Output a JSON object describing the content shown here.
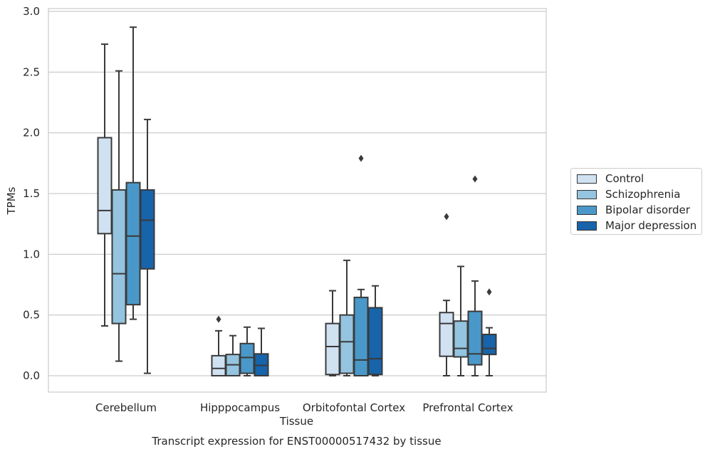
{
  "chart_data": {
    "type": "box",
    "title": "",
    "caption": "Transcript expression for ENST00000517432 by tissue",
    "xlabel": "Tissue",
    "ylabel": "TPMs",
    "ylim": [
      -0.13,
      3.02
    ],
    "yticks": [
      0.0,
      0.5,
      1.0,
      1.5,
      2.0,
      2.5,
      3.0
    ],
    "ytick_labels": [
      "0.0",
      "0.5",
      "1.0",
      "1.5",
      "2.0",
      "2.5",
      "3.0"
    ],
    "grid": "horizontal",
    "legend_position": "right",
    "categories": [
      "Cerebellum",
      "Hipppocampus",
      "Orbitofontal Cortex",
      "Prefrontal Cortex"
    ],
    "series": [
      {
        "name": "Control",
        "color": "#d0e1f2",
        "boxes": [
          {
            "min": 0.41,
            "q1": 1.17,
            "median": 1.36,
            "q3": 1.96,
            "max": 2.73,
            "outliers": []
          },
          {
            "min": 0.0,
            "q1": 0.0,
            "median": 0.06,
            "q3": 0.165,
            "max": 0.37,
            "outliers": [
              0.465
            ]
          },
          {
            "min": 0.0,
            "q1": 0.01,
            "median": 0.24,
            "q3": 0.43,
            "max": 0.7,
            "outliers": []
          },
          {
            "min": 0.0,
            "q1": 0.16,
            "median": 0.43,
            "q3": 0.52,
            "max": 0.62,
            "outliers": [
              1.31
            ]
          }
        ]
      },
      {
        "name": "Schizophrenia",
        "color": "#94c4df",
        "boxes": [
          {
            "min": 0.12,
            "q1": 0.43,
            "median": 0.84,
            "q3": 1.53,
            "max": 2.51,
            "outliers": []
          },
          {
            "min": 0.0,
            "q1": 0.0,
            "median": 0.09,
            "q3": 0.175,
            "max": 0.33,
            "outliers": []
          },
          {
            "min": 0.0,
            "q1": 0.02,
            "median": 0.28,
            "q3": 0.5,
            "max": 0.95,
            "outliers": []
          },
          {
            "min": 0.0,
            "q1": 0.155,
            "median": 0.225,
            "q3": 0.45,
            "max": 0.9,
            "outliers": []
          }
        ]
      },
      {
        "name": "Bipolar disorder",
        "color": "#4a98c9",
        "boxes": [
          {
            "min": 0.465,
            "q1": 0.585,
            "median": 1.15,
            "q3": 1.59,
            "max": 2.87,
            "outliers": []
          },
          {
            "min": 0.0,
            "q1": 0.02,
            "median": 0.15,
            "q3": 0.265,
            "max": 0.4,
            "outliers": []
          },
          {
            "min": 0.0,
            "q1": 0.0,
            "median": 0.13,
            "q3": 0.645,
            "max": 0.71,
            "outliers": [
              1.79
            ]
          },
          {
            "min": 0.0,
            "q1": 0.09,
            "median": 0.18,
            "q3": 0.53,
            "max": 0.78,
            "outliers": [
              1.62
            ]
          }
        ]
      },
      {
        "name": "Major depression",
        "color": "#1764ab",
        "boxes": [
          {
            "min": 0.02,
            "q1": 0.88,
            "median": 1.28,
            "q3": 1.53,
            "max": 2.11,
            "outliers": []
          },
          {
            "min": 0.0,
            "q1": 0.0,
            "median": 0.085,
            "q3": 0.18,
            "max": 0.39,
            "outliers": []
          },
          {
            "min": 0.0,
            "q1": 0.01,
            "median": 0.14,
            "q3": 0.56,
            "max": 0.74,
            "outliers": []
          },
          {
            "min": 0.0,
            "q1": 0.175,
            "median": 0.225,
            "q3": 0.34,
            "max": 0.395,
            "outliers": [
              0.69
            ]
          }
        ]
      }
    ]
  }
}
